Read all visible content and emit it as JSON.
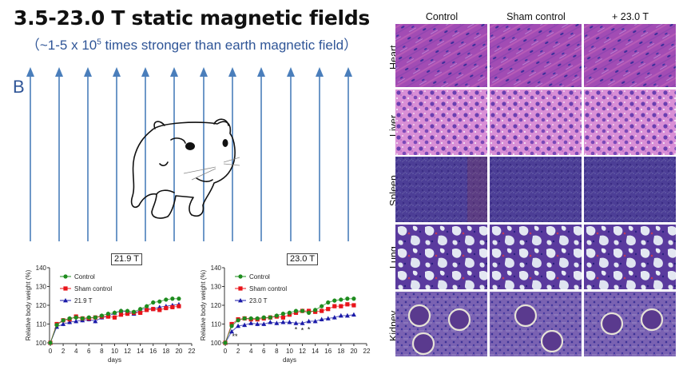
{
  "header": {
    "title": "3.5-23.0 T static magnetic fields",
    "subtitle_prefix": "（~1-5 x 10",
    "subtitle_exp": "5",
    "subtitle_suffix": " times stronger than earth magnetic field）",
    "field_label": "B"
  },
  "colors": {
    "arrow": "#4a7ebb",
    "control": "#1e8c1e",
    "sham": "#e8141a",
    "treated": "#1a1aa8",
    "subtitle": "#2f5597"
  },
  "histology": {
    "columns": [
      "Control",
      "Sham control",
      "+ 23.0 T"
    ],
    "rows": [
      "Heart",
      "Liver",
      "Spleen",
      "Lung",
      "Kidney"
    ]
  },
  "chart_data": [
    {
      "type": "line",
      "title": "21.9 T",
      "xlabel": "days",
      "ylabel": "Relative body weight (%)",
      "xlim": [
        0,
        22
      ],
      "ylim": [
        100,
        140
      ],
      "xticks": [
        0,
        2,
        4,
        6,
        8,
        10,
        12,
        14,
        16,
        18,
        20,
        22
      ],
      "yticks": [
        100,
        110,
        120,
        130,
        140
      ],
      "legend": "top-left",
      "x": [
        0,
        1,
        2,
        3,
        4,
        5,
        6,
        7,
        8,
        9,
        10,
        11,
        12,
        13,
        14,
        15,
        16,
        17,
        18,
        19,
        20
      ],
      "series": [
        {
          "name": "Control",
          "marker": "circle",
          "color": "#1e8c1e",
          "values": [
            100,
            109.5,
            112,
            113,
            113.5,
            113,
            113.5,
            113.5,
            114.5,
            115.5,
            116,
            117,
            117,
            116.5,
            118,
            119.5,
            121.5,
            122,
            123,
            123.5,
            123.5
          ]
        },
        {
          "name": "Sham control",
          "marker": "square",
          "color": "#e8141a",
          "values": [
            100,
            110,
            112,
            112.5,
            114,
            113,
            113,
            113.5,
            114,
            114,
            113.5,
            115,
            115.5,
            116,
            116,
            117.5,
            118,
            117.5,
            118.5,
            119,
            119.5
          ]
        },
        {
          "name": "21.9 T",
          "marker": "triangle",
          "color": "#1a1aa8",
          "values": [
            100,
            108.5,
            110,
            111,
            111.5,
            112,
            112.5,
            111.5,
            113.5,
            114,
            116,
            117,
            116.5,
            115.5,
            117.5,
            118.5,
            118,
            119,
            119.5,
            120,
            120.5
          ]
        }
      ],
      "annotations": []
    },
    {
      "type": "line",
      "title": "23.0 T",
      "xlabel": "days",
      "ylabel": "Relative body weight (%)",
      "xlim": [
        0,
        22
      ],
      "ylim": [
        100,
        140
      ],
      "xticks": [
        0,
        2,
        4,
        6,
        8,
        10,
        12,
        14,
        16,
        18,
        20,
        22
      ],
      "yticks": [
        100,
        110,
        120,
        130,
        140
      ],
      "legend": "top-left",
      "x": [
        0,
        1,
        2,
        3,
        4,
        5,
        6,
        7,
        8,
        9,
        10,
        11,
        12,
        13,
        14,
        15,
        16,
        17,
        18,
        19,
        20
      ],
      "series": [
        {
          "name": "Control",
          "marker": "circle",
          "color": "#1e8c1e",
          "values": [
            100,
            109,
            112,
            113,
            113,
            113,
            113.5,
            113.5,
            114.5,
            115.5,
            116,
            117,
            117,
            116,
            117.5,
            119.5,
            121.5,
            122.5,
            123,
            123.5,
            123.5
          ]
        },
        {
          "name": "Sham control",
          "marker": "square",
          "color": "#e8141a",
          "values": [
            100,
            110,
            112.5,
            113,
            112.5,
            112.5,
            113,
            113.5,
            114,
            113.5,
            115,
            116,
            117,
            117,
            116.5,
            117,
            118,
            119.5,
            119.5,
            120.5,
            120
          ]
        },
        {
          "name": "23.0 T",
          "marker": "triangle",
          "color": "#1a1aa8",
          "values": [
            100,
            106,
            109,
            109.5,
            110.5,
            110,
            110,
            111,
            110.5,
            111,
            111,
            110.5,
            110.5,
            111.5,
            111.5,
            112.5,
            113,
            113.5,
            114.5,
            114.5,
            115
          ]
        }
      ],
      "annotations": [
        {
          "text": "**",
          "x": 1.5,
          "y": 103.5
        },
        {
          "text": "*",
          "x": 11,
          "y": 107
        },
        {
          "text": "*",
          "x": 12,
          "y": 106.5
        },
        {
          "text": "*",
          "x": 13,
          "y": 107
        }
      ]
    }
  ]
}
